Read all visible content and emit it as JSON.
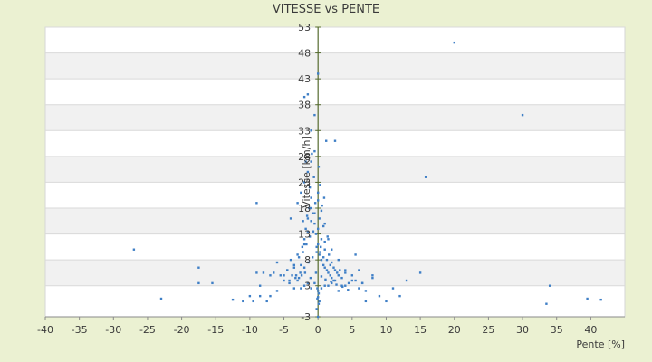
{
  "chart_data": {
    "type": "scatter",
    "title": "VITESSE vs PENTE",
    "xlabel": "Pente [%]",
    "ylabel": "Vitesse [km/h]",
    "xlim": [
      -40,
      45
    ],
    "ylim": [
      -3,
      53
    ],
    "x_ticks": [
      "-40",
      "-35",
      "-30",
      "-25",
      "-20",
      "-15",
      "-10",
      "-5",
      "0",
      "5",
      "10",
      "15",
      "20",
      "25",
      "30",
      "35",
      "40"
    ],
    "y_ticks": [
      "53",
      "48",
      "43",
      "38",
      "33",
      "28",
      "23",
      "18",
      "13",
      "8",
      "3",
      "-3"
    ],
    "grid": "horizontal banded",
    "legend": "none",
    "colors": {
      "background": "#ebf1d2",
      "plot_band_light": "#ffffff",
      "plot_band_gray": "#f1f1f1",
      "points": "#3f7fc6",
      "axis": "#556b2f"
    },
    "series": [
      {
        "x": [
          20.0,
          30.0,
          15.8,
          -27.0,
          -23.0,
          -17.5,
          -17.5,
          -15.5,
          -12.5,
          -11.0,
          -10.0,
          -9.5,
          -9.0,
          -8.5,
          -8.0,
          -7.5,
          -7.0,
          -6.5,
          -6.0,
          -5.5,
          -5.0,
          -4.5,
          -4.2,
          -4.0,
          -3.8,
          -3.5,
          -3.2,
          -3.0,
          -2.8,
          -2.5,
          -2.3,
          -2.0,
          -1.8,
          -1.5,
          -1.3,
          -1.0,
          -0.8,
          -0.5,
          -0.3,
          0.0,
          0.2,
          0.5,
          0.8,
          1.0,
          1.3,
          1.5,
          1.8,
          2.0,
          2.3,
          2.5,
          2.8,
          3.0,
          3.5,
          4.0,
          4.5,
          5.0,
          5.5,
          6.0,
          6.5,
          7.0,
          8.0,
          9.0,
          10.0,
          11.0,
          12.0,
          13.0,
          15.0,
          33.5,
          34.0,
          39.5,
          41.5,
          -9.0,
          -2.0,
          -1.5,
          -1.0,
          -0.5,
          0.0,
          0.3,
          1.2,
          2.5,
          -4.0,
          -3.0,
          -2.5,
          -2.0,
          -1.5,
          -1.0,
          -0.5,
          0.0,
          0.5,
          1.0,
          1.5,
          2.0,
          3.0,
          4.0,
          5.5,
          -2.0,
          -1.5,
          -1.0,
          -0.5,
          0.0,
          0.5,
          1.0,
          2.0,
          -3.5,
          -2.8,
          -2.2,
          -1.7,
          -1.2,
          -0.7,
          -0.2,
          0.3,
          0.8,
          1.3,
          1.8,
          2.3,
          3.2,
          -6.0,
          -4.5,
          -3.0,
          -2.0,
          -1.0,
          0.0,
          1.0,
          2.0,
          3.0,
          4.0,
          6.0,
          7.0,
          -8.5,
          -7.0,
          -5.0,
          -3.5,
          -2.5,
          -1.5,
          -0.5,
          0.5,
          1.5,
          2.5,
          3.5,
          5.0,
          6.5,
          8.0,
          -2.2,
          -1.6,
          -1.0,
          -0.4,
          0.2,
          0.8,
          1.4,
          -1.2,
          -0.6,
          0.0,
          0.6,
          -2.6,
          -2.0,
          -1.4,
          -0.8,
          -0.2,
          0.4,
          1.0,
          1.6,
          -1.8,
          -0.9,
          0.1,
          0.9,
          -4.2,
          -3.3,
          -2.4,
          -1.9,
          -1.1,
          -0.3,
          0.5,
          1.1,
          1.9,
          2.7,
          3.6,
          4.4,
          -0.2,
          -0.1,
          0.0,
          0.1,
          0.2,
          -0.1,
          0.0,
          0.1
        ],
        "y": [
          50,
          36,
          24,
          10,
          0.5,
          6.5,
          3.5,
          3.5,
          0.3,
          0.0,
          1.0,
          0.0,
          5.5,
          1.0,
          5.5,
          0.0,
          1.0,
          5.5,
          2.0,
          5.0,
          5.0,
          6.0,
          3.5,
          8.0,
          5.0,
          6.5,
          5.0,
          9.0,
          4.5,
          7.0,
          10.5,
          12.0,
          14.0,
          16.0,
          18.0,
          20.0,
          17.0,
          15.0,
          13.0,
          11.0,
          9.0,
          8.0,
          7.0,
          6.5,
          6.0,
          5.5,
          5.0,
          4.5,
          4.0,
          6.0,
          5.5,
          5.0,
          4.5,
          5.5,
          3.5,
          5.0,
          4.0,
          6.0,
          3.5,
          0.0,
          4.5,
          1.0,
          0.0,
          2.5,
          1.0,
          4.0,
          5.5,
          -0.5,
          3.0,
          0.5,
          0.3,
          19.0,
          39.5,
          40.0,
          33.0,
          36.0,
          44.0,
          22.5,
          31.0,
          31.0,
          16.0,
          19.0,
          21.0,
          23.0,
          25.0,
          27.0,
          29.0,
          19.5,
          17.5,
          15.0,
          12.0,
          10.0,
          8.0,
          6.0,
          9.0,
          11.0,
          13.5,
          15.5,
          17.0,
          14.0,
          12.0,
          10.0,
          7.5,
          7.0,
          8.5,
          9.5,
          11.0,
          12.5,
          13.5,
          10.5,
          9.5,
          8.5,
          8.0,
          7.0,
          6.5,
          6.0,
          7.5,
          6.0,
          4.0,
          3.0,
          2.5,
          2.0,
          3.0,
          3.5,
          2.0,
          3.0,
          2.5,
          2.0,
          3.0,
          5.0,
          4.0,
          2.5,
          2.5,
          3.5,
          3.5,
          2.5,
          3.0,
          4.0,
          3.0,
          4.0,
          3.5,
          5.0,
          15.5,
          16.5,
          18.0,
          19.0,
          16.0,
          14.5,
          12.5,
          22.0,
          24.0,
          21.0,
          18.5,
          5.5,
          6.5,
          7.5,
          8.5,
          9.5,
          10.5,
          11.5,
          9.0,
          27.0,
          28.5,
          26.0,
          20.0,
          4.0,
          4.5,
          5.0,
          5.5,
          4.5,
          5.5,
          4.8,
          4.2,
          3.8,
          3.2,
          2.8,
          2.2,
          -1.5,
          0.5,
          -3.0,
          1.5,
          0.0,
          2.5,
          0.8,
          -0.5
        ]
      }
    ]
  }
}
